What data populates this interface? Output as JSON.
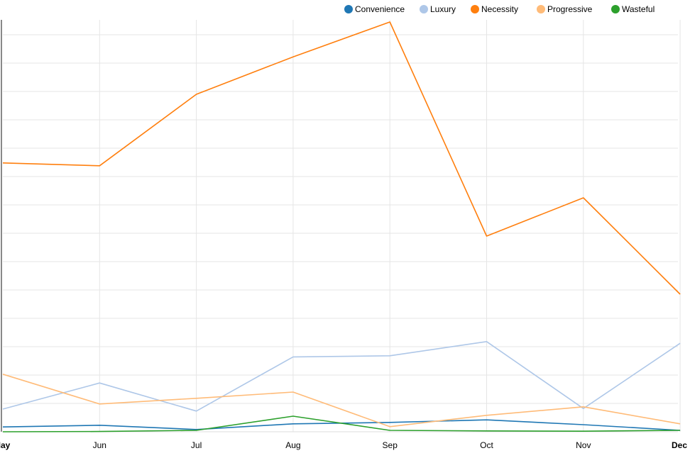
{
  "chart_data": {
    "type": "line",
    "title": "",
    "xlabel": "",
    "ylabel": "",
    "categories": [
      "May",
      "Jun",
      "Jul",
      "Aug",
      "Sep",
      "Oct",
      "Nov",
      "Dec"
    ],
    "ylim": [
      0,
      1450
    ],
    "grid": true,
    "legend_position": "top-right",
    "series": [
      {
        "name": "Convenience",
        "color": "#1f77b4",
        "values": [
          17,
          23,
          8,
          28,
          33,
          42,
          25,
          5
        ]
      },
      {
        "name": "Luxury",
        "color": "#aec7e8",
        "values": [
          80,
          172,
          73,
          264,
          268,
          318,
          82,
          312
        ]
      },
      {
        "name": "Necessity",
        "color": "#ff7f0e",
        "values": [
          948,
          938,
          1190,
          1322,
          1445,
          690,
          825,
          485
        ]
      },
      {
        "name": "Progressive",
        "color": "#ffbb78",
        "values": [
          203,
          98,
          118,
          140,
          18,
          58,
          88,
          28
        ]
      },
      {
        "name": "Wasteful",
        "color": "#2ca02c",
        "values": [
          0,
          1,
          5,
          55,
          5,
          3,
          2,
          5
        ]
      }
    ]
  }
}
